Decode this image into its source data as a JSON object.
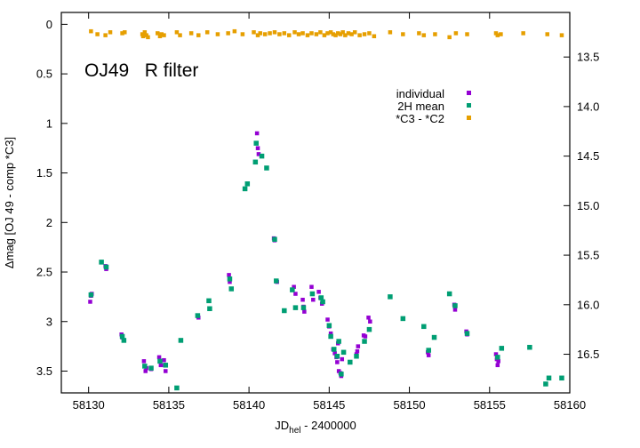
{
  "chart_data": {
    "type": "scatter",
    "annotation": "OJ49   R filter",
    "xlabel": "JD",
    "xlabel_sub": "hel",
    "xlabel_suffix": " - 2400000",
    "ylabel": "Δmag [OJ 49 - comp *C3]",
    "xlim": [
      58128.3,
      58160
    ],
    "ylim": [
      -0.12,
      3.72
    ],
    "y_inverted": true,
    "y2lim": [
      13.05,
      16.89
    ],
    "x_ticks": [
      58130,
      58135,
      58140,
      58145,
      58150,
      58155,
      58160
    ],
    "x_tick_labels": [
      "58130",
      "58135",
      "58140",
      "58145",
      "58150",
      "58155",
      "58160"
    ],
    "y_ticks": [
      0,
      0.5,
      1,
      1.5,
      2,
      2.5,
      3,
      3.5
    ],
    "y_tick_labels": [
      "0",
      "0.5",
      "1",
      "1.5",
      "2",
      "2.5",
      "3",
      "3.5"
    ],
    "y2_ticks": [
      13.5,
      14.0,
      14.5,
      15.0,
      15.5,
      16.0,
      16.5
    ],
    "y2_tick_labels": [
      "13.5",
      "14.0",
      "14.5",
      "15.0",
      "15.5",
      "16.0",
      "16.5"
    ],
    "grid": false,
    "legend_position": "top-right",
    "colors": {
      "individual": "#9400d3",
      "mean": "#009e73",
      "check": "#e69f00"
    },
    "series": [
      {
        "name": "individual",
        "x": [
          58130.1,
          58130.15,
          58130.2,
          58131.05,
          58131.1,
          58132.05,
          58132.1,
          58133.45,
          58133.5,
          58133.55,
          58133.6,
          58133.9,
          58134.4,
          58134.45,
          58134.5,
          58134.7,
          58134.75,
          58134.8,
          58136.8,
          58136.85,
          58138.75,
          58138.8,
          58140.5,
          58140.55,
          58140.6,
          58140.8,
          58141.55,
          58141.6,
          58141.75,
          58142.8,
          58142.9,
          58143.35,
          58143.4,
          58143.45,
          58143.9,
          58143.95,
          58144.0,
          58144.35,
          58144.45,
          58144.55,
          58144.9,
          58145.0,
          58145.1,
          58145.25,
          58145.35,
          58145.45,
          58145.5,
          58145.55,
          58145.6,
          58145.7,
          58145.75,
          58145.8,
          58146.7,
          58146.75,
          58146.8,
          58147.15,
          58147.25,
          58147.45,
          58147.55,
          58151.15,
          58151.2,
          58152.8,
          58152.85,
          58153.55,
          58153.6,
          58155.4,
          58155.45,
          58155.5,
          58155.55
        ],
        "y": [
          2.8,
          2.74,
          2.72,
          2.44,
          2.47,
          3.13,
          3.16,
          3.4,
          3.45,
          3.5,
          3.47,
          3.48,
          3.36,
          3.4,
          3.44,
          3.39,
          3.44,
          3.5,
          2.94,
          2.96,
          2.53,
          2.6,
          1.1,
          1.25,
          1.31,
          1.33,
          2.16,
          2.18,
          2.6,
          2.65,
          2.72,
          2.78,
          2.85,
          2.9,
          2.65,
          2.72,
          2.78,
          2.7,
          2.76,
          2.82,
          2.98,
          3.05,
          3.12,
          3.28,
          3.32,
          3.36,
          3.41,
          3.22,
          3.5,
          3.52,
          3.55,
          3.38,
          3.33,
          3.3,
          3.25,
          3.14,
          3.15,
          2.96,
          3.0,
          3.31,
          3.34,
          2.83,
          2.88,
          3.1,
          3.13,
          3.33,
          3.38,
          3.44,
          3.4
        ]
      },
      {
        "name": "2H mean",
        "x": [
          58130.15,
          58130.8,
          58131.1,
          58132.1,
          58132.2,
          58133.5,
          58133.9,
          58134.45,
          58134.8,
          58135.5,
          58135.75,
          58136.8,
          58137.5,
          58137.55,
          58138.8,
          58138.9,
          58139.75,
          58139.9,
          58140.4,
          58140.45,
          58140.8,
          58141.1,
          58141.6,
          58141.7,
          58142.2,
          58142.7,
          58142.9,
          58143.4,
          58143.95,
          58144.5,
          58144.6,
          58145.0,
          58145.1,
          58145.3,
          58145.5,
          58145.6,
          58145.75,
          58145.9,
          58146.3,
          58146.7,
          58147.2,
          58147.5,
          58148.8,
          58149.6,
          58150.9,
          58151.2,
          58151.55,
          58152.5,
          58152.85,
          58153.6,
          58155.5,
          58155.75,
          58157.5,
          58158.5,
          58158.7,
          58159.5
        ],
        "y": [
          2.73,
          2.4,
          2.45,
          3.15,
          3.19,
          3.45,
          3.47,
          3.4,
          3.44,
          3.67,
          3.19,
          2.94,
          2.79,
          2.87,
          2.57,
          2.67,
          1.66,
          1.61,
          1.39,
          1.2,
          1.33,
          1.45,
          2.17,
          2.59,
          2.89,
          2.68,
          2.86,
          2.86,
          2.72,
          2.76,
          2.8,
          3.04,
          3.15,
          3.28,
          3.35,
          3.2,
          3.53,
          3.31,
          3.41,
          3.35,
          3.2,
          3.08,
          2.75,
          2.97,
          3.05,
          3.29,
          3.16,
          2.72,
          2.84,
          3.12,
          3.36,
          3.27,
          3.26,
          3.63,
          3.57,
          3.57
        ]
      },
      {
        "name": "*C3 - *C2",
        "x": [
          58130.15,
          58130.55,
          58131.05,
          58131.35,
          58132.1,
          58132.25,
          58133.35,
          58133.4,
          58133.5,
          58133.6,
          58133.7,
          58134.3,
          58134.45,
          58134.55,
          58134.7,
          58135.5,
          58135.7,
          58136.4,
          58136.85,
          58137.4,
          58138.05,
          58138.7,
          58139.1,
          58139.6,
          58140.3,
          58140.55,
          58140.7,
          58141.0,
          58141.3,
          58141.6,
          58141.9,
          58142.2,
          58142.5,
          58142.85,
          58143.1,
          58143.35,
          58143.65,
          58143.9,
          58144.2,
          58144.45,
          58144.7,
          58144.9,
          58145.1,
          58145.25,
          58145.4,
          58145.55,
          58145.7,
          58145.85,
          58146.0,
          58146.2,
          58146.4,
          58146.6,
          58146.9,
          58147.2,
          58147.5,
          58147.8,
          58148.8,
          58149.6,
          58150.6,
          58150.9,
          58151.6,
          58152.5,
          58152.9,
          58153.6,
          58155.4,
          58155.5,
          58155.7,
          58157.1,
          58158.6,
          58159.5
        ],
        "y": [
          0.07,
          0.1,
          0.11,
          0.08,
          0.09,
          0.08,
          0.1,
          0.12,
          0.08,
          0.11,
          0.13,
          0.09,
          0.12,
          0.1,
          0.11,
          0.08,
          0.11,
          0.09,
          0.11,
          0.08,
          0.1,
          0.09,
          0.07,
          0.1,
          0.08,
          0.11,
          0.09,
          0.1,
          0.09,
          0.08,
          0.1,
          0.09,
          0.11,
          0.08,
          0.1,
          0.09,
          0.11,
          0.09,
          0.1,
          0.08,
          0.11,
          0.09,
          0.08,
          0.1,
          0.11,
          0.09,
          0.1,
          0.08,
          0.11,
          0.09,
          0.1,
          0.08,
          0.11,
          0.1,
          0.09,
          0.12,
          0.08,
          0.1,
          0.09,
          0.11,
          0.1,
          0.13,
          0.09,
          0.1,
          0.09,
          0.11,
          0.1,
          0.09,
          0.1,
          0.11
        ]
      }
    ]
  }
}
